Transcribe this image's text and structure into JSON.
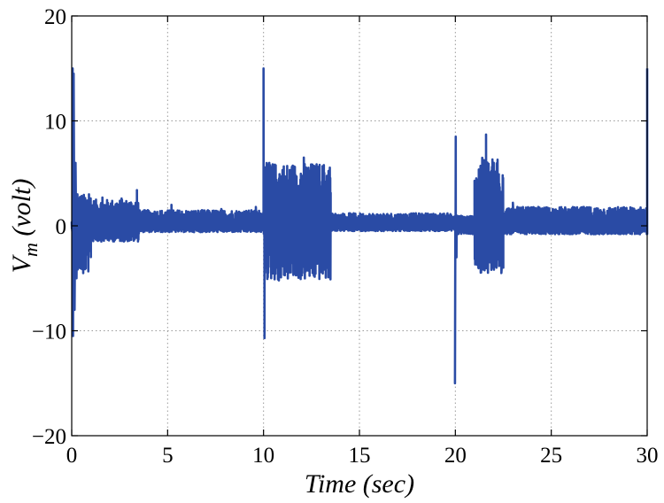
{
  "chart_data": {
    "type": "line",
    "title": "",
    "xlabel": "Time (sec)",
    "ylabel_main": "V",
    "ylabel_sub": "m",
    "ylabel_unit": " (volt)",
    "xlim": [
      0,
      30
    ],
    "ylim": [
      -20,
      20
    ],
    "xticks": [
      0,
      5,
      10,
      15,
      20,
      25,
      30
    ],
    "yticks": [
      -20,
      -10,
      0,
      10,
      20
    ],
    "xtick_labels": [
      "0",
      "5",
      "10",
      "15",
      "20",
      "25",
      "30"
    ],
    "ytick_labels": [
      "−20",
      "−10",
      "0",
      "10",
      "20"
    ],
    "grid": true,
    "line_color": "#2a4ba5",
    "series": [
      {
        "segments": [
          {
            "t0": 0.0,
            "t1": 0.05,
            "env_lo": -0.5,
            "env_hi": 0.5,
            "spikes": [
              [
                0.05,
                15
              ],
              [
                0.07,
                -10.5
              ],
              [
                0.1,
                14.5
              ],
              [
                0.15,
                -8
              ],
              [
                0.2,
                6
              ],
              [
                0.25,
                -5
              ],
              [
                0.3,
                3
              ]
            ]
          },
          {
            "t0": 0.3,
            "t1": 1.0,
            "env_lo": -4.5,
            "env_hi": 3.0,
            "spikes": [
              [
                0.6,
                -4.5
              ],
              [
                0.9,
                3
              ]
            ]
          },
          {
            "t0": 1.0,
            "t1": 3.5,
            "env_lo": -1.5,
            "env_hi": 2.5,
            "spikes": [
              [
                1.6,
                2.7
              ],
              [
                2.6,
                2.6
              ],
              [
                3.4,
                3.4
              ],
              [
                3.5,
                -0.6
              ]
            ]
          },
          {
            "t0": 3.5,
            "t1": 10.0,
            "env_lo": -0.6,
            "env_hi": 1.5,
            "spikes": [
              [
                5.2,
                2.0
              ],
              [
                7.8,
                1.6
              ],
              [
                9.6,
                1.8
              ]
            ]
          },
          {
            "t0": 10.0,
            "t1": 10.1,
            "env_lo": -1.0,
            "env_hi": 1.0,
            "spikes": [
              [
                10.0,
                15
              ],
              [
                10.05,
                -10.7
              ],
              [
                10.1,
                5
              ]
            ]
          },
          {
            "t0": 10.1,
            "t1": 13.5,
            "env_lo": -5.2,
            "env_hi": 6.0,
            "spikes": [
              [
                10.3,
                6.0
              ],
              [
                10.8,
                -5.2
              ],
              [
                11.6,
                3.8
              ],
              [
                12.1,
                6.5
              ],
              [
                12.4,
                -3.5
              ],
              [
                12.7,
                5.5
              ],
              [
                13.2,
                -2.5
              ]
            ]
          },
          {
            "t0": 13.5,
            "t1": 20.0,
            "env_lo": -0.5,
            "env_hi": 1.2,
            "spikes": [
              [
                14.5,
                1.2
              ],
              [
                17.0,
                0.9
              ]
            ]
          },
          {
            "t0": 20.0,
            "t1": 20.1,
            "env_lo": -1.0,
            "env_hi": 1.0,
            "spikes": [
              [
                19.98,
                -15
              ],
              [
                20.02,
                8.5
              ],
              [
                20.06,
                -3
              ],
              [
                20.1,
                0.5
              ]
            ]
          },
          {
            "t0": 20.1,
            "t1": 21.0,
            "env_lo": -0.8,
            "env_hi": 1.0,
            "spikes": []
          },
          {
            "t0": 21.0,
            "t1": 22.5,
            "env_lo": -4.5,
            "env_hi": 6.5,
            "spikes": [
              [
                21.6,
                8.7
              ],
              [
                21.2,
                -4
              ],
              [
                22.2,
                6.3
              ],
              [
                22.4,
                -4.5
              ]
            ]
          },
          {
            "t0": 22.5,
            "t1": 30.0,
            "env_lo": -0.8,
            "env_hi": 1.8,
            "spikes": [
              [
                23.0,
                2.2
              ],
              [
                24.2,
                1.6
              ]
            ]
          },
          {
            "t0": 30.0,
            "t1": 30.0,
            "env_lo": 0,
            "env_hi": 0,
            "spikes": [
              [
                30.0,
                15
              ]
            ]
          }
        ]
      }
    ]
  }
}
